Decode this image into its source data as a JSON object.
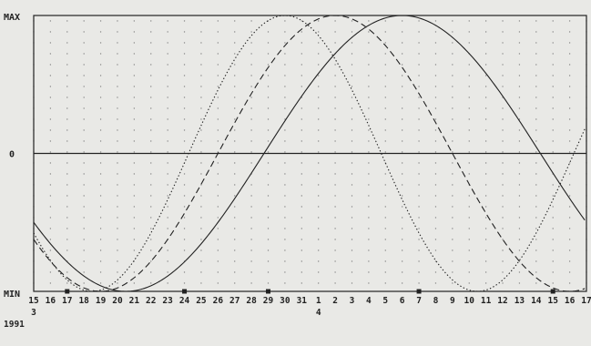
{
  "chart_data": {
    "type": "line",
    "title": "",
    "xlabel": "",
    "ylabel": "",
    "y_axis_labels": {
      "top": "MAX",
      "middle": "0",
      "bottom": "MIN"
    },
    "ylim": [
      -1,
      1
    ],
    "grid": "dotted",
    "x_ticks": [
      "15",
      "16",
      "17",
      "18",
      "19",
      "20",
      "21",
      "22",
      "23",
      "24",
      "25",
      "26",
      "27",
      "28",
      "29",
      "30",
      "31",
      "1",
      "2",
      "3",
      "4",
      "5",
      "6",
      "7",
      "8",
      "9",
      "10",
      "11",
      "12",
      "13",
      "14",
      "15",
      "16",
      "17"
    ],
    "x_sublabels": [
      {
        "index": 0,
        "text": "3"
      },
      {
        "index": 17,
        "text": "4"
      }
    ],
    "year_label": "1991",
    "markers_at": [
      2,
      9,
      14,
      23,
      31
    ],
    "series": [
      {
        "style": "solid",
        "period_days": 33,
        "peak_day": 22,
        "trough_day": 5.5
      },
      {
        "style": "dashed",
        "period_days": 28,
        "peak_day": 18,
        "trough_day": 4
      },
      {
        "style": "dotted",
        "period_days": 23,
        "peak_day": 15,
        "trough_day": 3.5
      }
    ],
    "colors": {
      "background": "#e9e9e6",
      "line": "#222222",
      "grid": "#8a8a8a"
    }
  }
}
